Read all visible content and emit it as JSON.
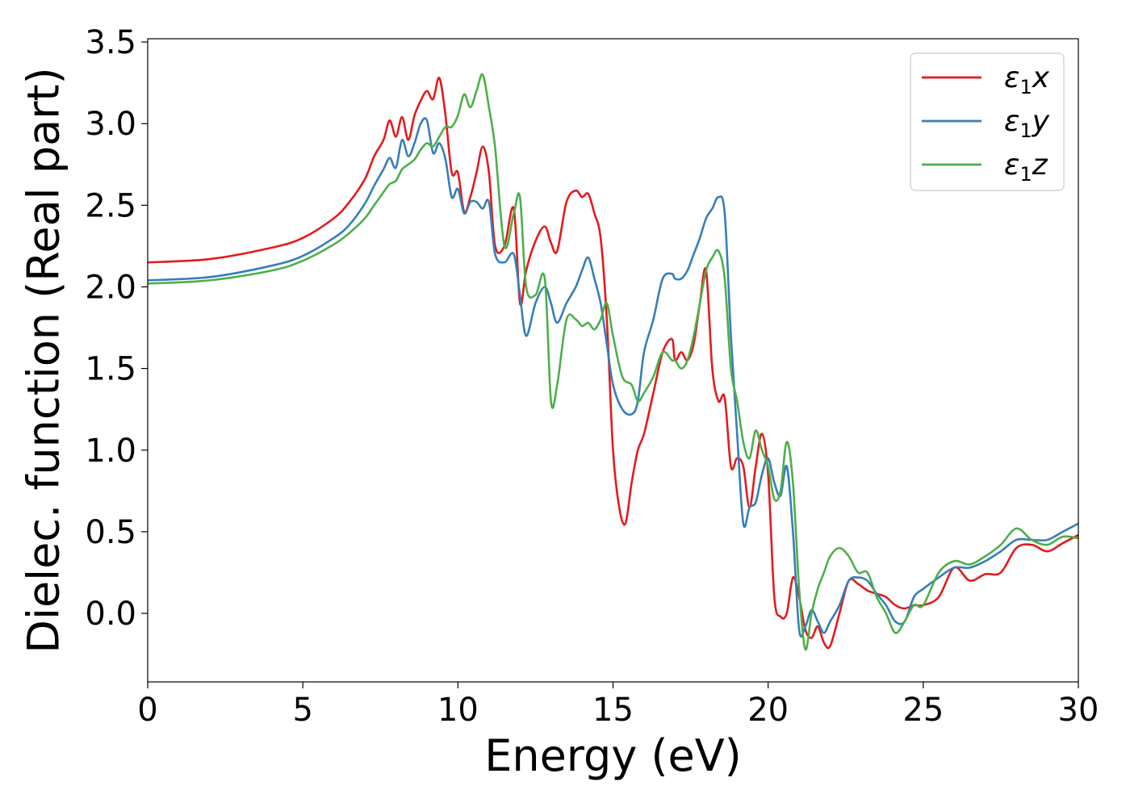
{
  "chart_data": {
    "type": "line",
    "xlabel": "Energy (eV)",
    "ylabel": "Dielec. function (Real part)",
    "xlim": [
      0,
      30
    ],
    "ylim": [
      -0.42,
      3.52
    ],
    "xticks": [
      0,
      5,
      10,
      15,
      20,
      25,
      30
    ],
    "yticks": [
      0.0,
      0.5,
      1.0,
      1.5,
      2.0,
      2.5,
      3.0,
      3.5
    ],
    "xtick_labels": [
      "0",
      "5",
      "10",
      "15",
      "20",
      "25",
      "30"
    ],
    "ytick_labels": [
      "0.0",
      "0.5",
      "1.0",
      "1.5",
      "2.0",
      "2.5",
      "3.0",
      "3.5"
    ],
    "grid": false,
    "legend_position": "top-right",
    "series": [
      {
        "name": "ε₁x",
        "legend_base": "ε",
        "legend_sub": "1",
        "legend_var": "x",
        "color": "#e41a1c",
        "x": [
          0,
          2,
          4,
          5,
          6,
          6.5,
          7,
          7.3,
          7.6,
          7.8,
          8.0,
          8.2,
          8.4,
          8.6,
          8.8,
          9.0,
          9.2,
          9.4,
          9.6,
          9.8,
          10.0,
          10.2,
          10.4,
          10.6,
          10.8,
          11.0,
          11.2,
          11.5,
          11.8,
          12.0,
          12.2,
          12.5,
          12.8,
          13.0,
          13.2,
          13.5,
          13.8,
          14.0,
          14.2,
          14.4,
          14.6,
          14.8,
          15.0,
          15.2,
          15.4,
          15.6,
          15.8,
          16.0,
          16.3,
          16.6,
          16.9,
          17.0,
          17.2,
          17.4,
          17.6,
          17.8,
          18.0,
          18.2,
          18.4,
          18.6,
          18.8,
          19.0,
          19.2,
          19.4,
          19.6,
          19.8,
          20.0,
          20.2,
          20.4,
          20.6,
          20.8,
          21.0,
          21.2,
          21.4,
          21.6,
          21.8,
          22.0,
          22.3,
          22.6,
          22.9,
          23.2,
          23.5,
          23.8,
          24.1,
          24.4,
          24.7,
          25.0,
          25.5,
          26.0,
          26.5,
          27.0,
          27.5,
          28.0,
          28.5,
          29.0,
          29.5,
          30.0
        ],
        "y": [
          2.15,
          2.17,
          2.24,
          2.3,
          2.42,
          2.52,
          2.66,
          2.8,
          2.9,
          3.02,
          2.92,
          3.04,
          2.9,
          3.05,
          3.14,
          3.2,
          3.15,
          3.28,
          3.05,
          2.7,
          2.7,
          2.46,
          2.55,
          2.7,
          2.86,
          2.7,
          2.25,
          2.25,
          2.48,
          1.9,
          2.1,
          2.28,
          2.37,
          2.27,
          2.22,
          2.52,
          2.59,
          2.55,
          2.57,
          2.45,
          2.3,
          1.8,
          1.0,
          0.65,
          0.55,
          0.8,
          1.0,
          1.1,
          1.35,
          1.6,
          1.68,
          1.55,
          1.6,
          1.55,
          1.65,
          1.9,
          2.1,
          1.5,
          1.3,
          1.32,
          0.9,
          0.95,
          0.9,
          0.65,
          0.9,
          1.1,
          0.85,
          0.1,
          -0.02,
          0.0,
          0.22,
          0.1,
          -0.1,
          -0.15,
          -0.08,
          -0.18,
          -0.2,
          0.0,
          0.2,
          0.18,
          0.14,
          0.12,
          0.1,
          0.05,
          0.03,
          0.05,
          0.05,
          0.1,
          0.28,
          0.2,
          0.24,
          0.25,
          0.4,
          0.42,
          0.38,
          0.43,
          0.48
        ]
      },
      {
        "name": "ε₁y",
        "legend_base": "ε",
        "legend_sub": "1",
        "legend_var": "y",
        "color": "#377eb8",
        "x": [
          0,
          2,
          4,
          5,
          6,
          6.5,
          7,
          7.3,
          7.6,
          7.8,
          8.0,
          8.2,
          8.4,
          8.6,
          8.8,
          9.0,
          9.2,
          9.4,
          9.6,
          9.8,
          10.0,
          10.2,
          10.4,
          10.6,
          10.8,
          11.0,
          11.2,
          11.5,
          11.8,
          12.0,
          12.2,
          12.5,
          12.8,
          13.0,
          13.2,
          13.5,
          13.8,
          14.0,
          14.2,
          14.4,
          14.6,
          14.8,
          15.0,
          15.3,
          15.6,
          15.8,
          16.0,
          16.3,
          16.6,
          16.9,
          17.0,
          17.2,
          17.4,
          17.6,
          17.8,
          18.0,
          18.2,
          18.4,
          18.6,
          18.8,
          19.0,
          19.2,
          19.4,
          19.6,
          19.8,
          20.0,
          20.2,
          20.4,
          20.6,
          20.8,
          21.0,
          21.2,
          21.4,
          21.6,
          21.8,
          22.0,
          22.3,
          22.6,
          22.9,
          23.2,
          23.5,
          23.8,
          24.1,
          24.4,
          24.7,
          25.0,
          25.5,
          26.0,
          26.5,
          27.0,
          27.5,
          28.0,
          28.5,
          29.0,
          29.5,
          30.0
        ],
        "y": [
          2.04,
          2.06,
          2.13,
          2.19,
          2.3,
          2.38,
          2.51,
          2.62,
          2.72,
          2.79,
          2.73,
          2.9,
          2.8,
          2.88,
          3.0,
          3.02,
          2.82,
          2.88,
          2.78,
          2.55,
          2.6,
          2.45,
          2.52,
          2.52,
          2.48,
          2.52,
          2.2,
          2.15,
          2.2,
          1.95,
          1.7,
          1.9,
          2.0,
          1.9,
          1.78,
          1.9,
          2.0,
          2.1,
          2.18,
          2.05,
          1.9,
          1.65,
          1.4,
          1.25,
          1.22,
          1.3,
          1.6,
          1.8,
          2.05,
          2.08,
          2.05,
          2.05,
          2.1,
          2.2,
          2.3,
          2.42,
          2.48,
          2.55,
          2.45,
          1.7,
          1.1,
          0.55,
          0.65,
          0.68,
          0.85,
          0.95,
          0.8,
          0.72,
          0.9,
          0.5,
          -0.1,
          -0.08,
          0.02,
          -0.05,
          -0.12,
          -0.05,
          0.05,
          0.2,
          0.22,
          0.2,
          0.12,
          0.05,
          -0.05,
          -0.05,
          0.1,
          0.15,
          0.22,
          0.28,
          0.28,
          0.32,
          0.38,
          0.45,
          0.45,
          0.45,
          0.5,
          0.55
        ]
      },
      {
        "name": "ε₁z",
        "legend_base": "ε",
        "legend_sub": "1",
        "legend_var": "z",
        "color": "#4daf4a",
        "x": [
          0,
          2,
          4,
          5,
          6,
          6.5,
          7,
          7.3,
          7.6,
          7.8,
          8.0,
          8.2,
          8.4,
          8.6,
          8.8,
          9.0,
          9.2,
          9.4,
          9.6,
          9.8,
          10.0,
          10.2,
          10.4,
          10.6,
          10.8,
          11.0,
          11.2,
          11.5,
          11.8,
          12.0,
          12.2,
          12.5,
          12.8,
          13.0,
          13.2,
          13.5,
          13.8,
          14.0,
          14.2,
          14.4,
          14.6,
          14.8,
          15.0,
          15.3,
          15.6,
          15.8,
          16.0,
          16.3,
          16.6,
          16.9,
          17.0,
          17.2,
          17.4,
          17.6,
          17.8,
          18.0,
          18.2,
          18.4,
          18.6,
          18.8,
          19.0,
          19.2,
          19.4,
          19.6,
          19.8,
          20.0,
          20.2,
          20.4,
          20.6,
          20.8,
          21.0,
          21.2,
          21.4,
          21.6,
          21.8,
          22.0,
          22.3,
          22.6,
          22.9,
          23.2,
          23.5,
          23.8,
          24.1,
          24.4,
          24.7,
          25.0,
          25.5,
          26.0,
          26.5,
          27.0,
          27.5,
          28.0,
          28.5,
          29.0,
          29.5,
          30.0
        ],
        "y": [
          2.02,
          2.04,
          2.1,
          2.16,
          2.26,
          2.33,
          2.42,
          2.5,
          2.58,
          2.63,
          2.65,
          2.72,
          2.75,
          2.78,
          2.84,
          2.88,
          2.86,
          2.92,
          2.98,
          2.98,
          3.05,
          3.18,
          3.1,
          3.2,
          3.3,
          3.1,
          2.85,
          2.25,
          2.45,
          2.55,
          2.0,
          1.95,
          2.05,
          1.3,
          1.4,
          1.8,
          1.8,
          1.76,
          1.78,
          1.74,
          1.8,
          1.9,
          1.7,
          1.45,
          1.4,
          1.3,
          1.35,
          1.45,
          1.6,
          1.55,
          1.55,
          1.5,
          1.55,
          1.7,
          1.9,
          2.1,
          2.18,
          2.22,
          2.05,
          1.5,
          1.3,
          1.05,
          0.95,
          1.12,
          1.0,
          0.9,
          0.7,
          0.75,
          1.05,
          0.8,
          0.15,
          -0.22,
          0.0,
          0.15,
          0.25,
          0.35,
          0.4,
          0.35,
          0.25,
          0.25,
          0.1,
          0.0,
          -0.12,
          -0.05,
          0.05,
          0.05,
          0.25,
          0.32,
          0.3,
          0.35,
          0.42,
          0.52,
          0.45,
          0.42,
          0.47,
          0.46
        ]
      }
    ]
  }
}
